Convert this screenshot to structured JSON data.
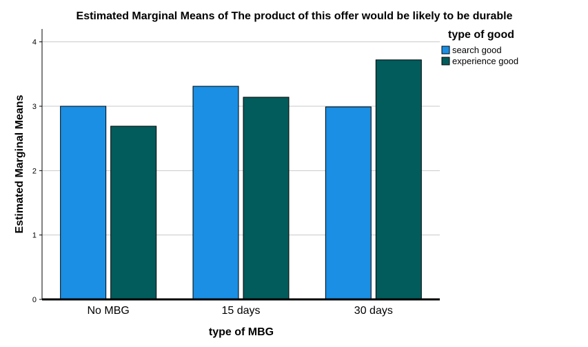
{
  "chart_data": {
    "type": "bar",
    "title": "Estimated Marginal Means of The product of this offer would be likely to be durable",
    "xlabel": "type of MBG",
    "ylabel": "Estimated Marginal Means",
    "categories": [
      "No MBG",
      "15 days",
      "30 days"
    ],
    "series": [
      {
        "name": "search good",
        "color": "#1a8fe3",
        "values": [
          3.0,
          3.31,
          2.99
        ]
      },
      {
        "name": "experience good",
        "color": "#025c5c",
        "values": [
          2.69,
          3.14,
          3.72
        ]
      }
    ],
    "ylim": [
      0,
      4.2
    ],
    "yticks": [
      "0",
      "1",
      "2",
      "3",
      "4"
    ],
    "grid": true,
    "legend": {
      "title": "type of good",
      "position": "top-right"
    }
  }
}
